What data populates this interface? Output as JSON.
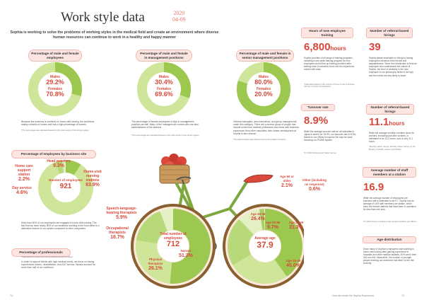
{
  "header": {
    "title": "Work style data",
    "date_year": "2020",
    "date_md": "04-09",
    "intro": "Sophia is working to solve the problems of working styles in the medical field and create an environment where diverse human resources can continue to work in a healthy and happy manner"
  },
  "gender_employees": {
    "title": "Percentage of male and female employees",
    "males_label": "Males",
    "males_value": "29.2%",
    "females_label": "Females",
    "females_value": "70.8%",
    "males_pct": 29.2,
    "note": "Because the business is centered on home-visit nursing, the workforce mainly consists of nurses and has a high percentage of women.",
    "source": "*The percentages are calculated based on the total number of the family register."
  },
  "gender_management": {
    "title": "Percentage of male and female in management positions",
    "males_label": "Males",
    "males_value": "30.4%",
    "females_label": "Females",
    "females_value": "69.6%",
    "males_pct": 30.4,
    "note": "The percentage of female employees is high in management positions as well. Many of the managers are nurses who are also administrators of the stations.",
    "source": "*The percentages are calculated based on the total number of the family register."
  },
  "gender_senior": {
    "title": "Percentage of male and female in senior management positions",
    "males_label": "Males",
    "males_value": "80.0%",
    "females_label": "Females",
    "females_value": "20.0%",
    "males_pct": 80.0,
    "note": "General managers, area executives, and group managers fall under this category. There are a diverse group of people that include some from medical professions and some with business experience from other industries; their career development at Sophia is also diverse.",
    "source": "*The table includes area directors above the position hierarchy..."
  },
  "business_site": {
    "title": "Percentage of employees by business site",
    "center_label": "Number of employees",
    "center_value": "921",
    "segments": [
      {
        "label": "Head quarters",
        "value": "9.3%",
        "pct": 9.3
      },
      {
        "label": "Home-visit nursing stations",
        "value": "83.9%",
        "pct": 83.9
      },
      {
        "label": "Day service",
        "value": "4.6%",
        "pct": 4.6
      },
      {
        "label": "Home care support station",
        "value": "2.2%",
        "pct": 2.2
      }
    ],
    "note": "More than 80% of our employees are engaged in home-visit nursing. The fact that we have nearly 80% of our workforce working in the front office is a distinctive feature of our system compared to other companies."
  },
  "professionals": {
    "title": "Percentage of professionals",
    "source": "*Calculated for nurses and nursing stations (except for office)",
    "note": "In order to support clients with high medical needs, we focus on having experienced nurses, rehabilitation, and 24/7 service. Nurses account for more than half of our workforce.",
    "center_label": "Total number of employees",
    "center_value": "712",
    "segments": [
      {
        "label": "Nurses",
        "value": "51.3%",
        "pct": 51.3
      },
      {
        "label": "Physical therapists",
        "value": "26.1%",
        "pct": 26.1
      },
      {
        "label": "Occupational therapists",
        "value": "16.7%",
        "pct": 16.7
      },
      {
        "label": "Speech-language-hearing therapists",
        "value": "5.9%",
        "pct": 5.9
      }
    ]
  },
  "age": {
    "title": "Age distribution",
    "center_label": "Average age",
    "center_value": "37.9",
    "segments": [
      {
        "label": "Age 30-39",
        "value": "40.0%",
        "pct": 40.0
      },
      {
        "label": "Age 40-49",
        "value": "26.4%",
        "pct": 26.4
      },
      {
        "label": "Age 20-29",
        "value": "21.3%",
        "pct": 21.3
      },
      {
        "label": "Age 50-59",
        "value": "9.7%",
        "pct": 9.7
      },
      {
        "label": "Age 60 or older",
        "value": "2.1%",
        "pct": 2.1
      },
      {
        "label": "Other (including no response)",
        "value": "0.6%",
        "pct": 0.6
      }
    ],
    "note": "Since many of Sophia's employees start working in home-visit nursing after gaining experience in hospitals and other medical facilities, 60% are in their 30s and 40s. Meanwhile, the number of younger people entering our workforce has been on the rise recently."
  },
  "training": {
    "title": "Hours of new employee training",
    "value": "6,800",
    "unit": "hours",
    "note": "Sophia provides a full range of training programs, including a one-week training program for new employees and follow-up training provided after starting work to transition them into the experience nurses with ease.",
    "source": "*Calculated based on the number of hours of new employee training x number of participants"
  },
  "referral_hirings": {
    "title": "Number of referral-based hirings",
    "value": "39",
    "note": "Sophia places emphasis on hiring by having employees introduce their friends and acquaintances. Since the introduction is from an employee who understands the culture of Sophia, the level of similarity in the new employee to our philosophy tends to be high, and the hirees are less likely to leave."
  },
  "turnover": {
    "title": "Turnover rate",
    "value": "8.9%",
    "note": "While the average turnover rate for all industries in Japan is said to be 15.0%, our turnover rate is 8.9%, thanks to our efforts to improve the way we work, including our PCMW system.",
    "source": "*FY 2020 Working Hour Status Survey"
  },
  "overtime": {
    "title": "Number of referral-based hirings",
    "value": "11.1",
    "unit": "hours",
    "note": "While the average monthly overtime hours for workers, excluding part-time workers, is estimated to be 14.3 hours, ours is only 11.1 hours.",
    "source": "*Monthly Labour Survey, Monthly Labour Survey by the Ministry of Health, Labour and Welfare"
  },
  "staff_station": {
    "title": "Average number of staff members at a station",
    "value": "16.9",
    "note": "While the average number of employees per business site is estimated to be 6.7, Sophia has an average of 16.9 staff members per station, which does not include stations that have been in operation for less than one year.",
    "source": "*FY 2019 Survey of Nursing Care Service Facilities and Offices"
  },
  "footer": {
    "left_page": "74",
    "right_label": "How we create the Sophia Experience",
    "right_page": "75"
  },
  "colors": {
    "accent": "#d9483a",
    "green": "#9cc84f",
    "light_green": "#cfe69a",
    "pink": "#fde6e2"
  }
}
